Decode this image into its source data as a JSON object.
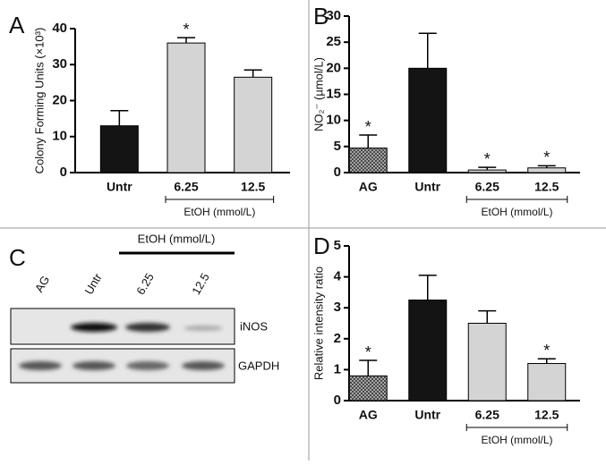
{
  "chart_data": [
    {
      "type": "bar",
      "label": "A",
      "ylabel": "Colony Forming Units (×10³)",
      "categories": [
        "Untr",
        "6.25",
        "12.5"
      ],
      "values": [
        13,
        36,
        26.5
      ],
      "errors": [
        4.2,
        1.5,
        2
      ],
      "colors": [
        "#141414",
        "#d4d4d4",
        "#d4d4d4"
      ],
      "hatch": [
        false,
        false,
        false
      ],
      "annotations": [
        null,
        "*",
        null
      ],
      "group": {
        "label": "EtOH (mmol/L)",
        "from": 1,
        "to": 2
      },
      "ylim": [
        0,
        40
      ],
      "yticks": [
        0,
        10,
        20,
        30,
        40
      ]
    },
    {
      "type": "bar",
      "label": "B",
      "ylabel": "NO₂⁻ (µmol/L)",
      "categories": [
        "AG",
        "Untr",
        "6.25",
        "12.5"
      ],
      "values": [
        4.7,
        20,
        0.5,
        0.9
      ],
      "errors": [
        2.5,
        6.7,
        0.5,
        0.4
      ],
      "colors": [
        "#888888",
        "#141414",
        "#d4d4d4",
        "#d4d4d4"
      ],
      "hatch": [
        true,
        false,
        false,
        false
      ],
      "annotations": [
        "*",
        null,
        "*",
        "*"
      ],
      "group": {
        "label": "EtOH (mmol/L)",
        "from": 2,
        "to": 3
      },
      "ylim": [
        0,
        30
      ],
      "yticks": [
        0,
        5,
        10,
        15,
        20,
        25,
        30
      ]
    },
    {
      "type": "bar",
      "label": "D",
      "ylabel": "Relative intensity ratio",
      "categories": [
        "AG",
        "Untr",
        "6.25",
        "12.5"
      ],
      "values": [
        0.8,
        3.25,
        2.5,
        1.2
      ],
      "errors": [
        0.5,
        0.8,
        0.4,
        0.15
      ],
      "colors": [
        "#888888",
        "#141414",
        "#d4d4d4",
        "#d4d4d4"
      ],
      "hatch": [
        true,
        false,
        false,
        false
      ],
      "annotations": [
        "*",
        null,
        null,
        "*"
      ],
      "group": {
        "label": "EtOH (mmol/L)",
        "from": 2,
        "to": 3
      },
      "ylim": [
        0,
        5
      ],
      "yticks": [
        0,
        1,
        2,
        3,
        4,
        5
      ]
    }
  ],
  "blot": {
    "label": "C",
    "group": "EtOH (mmol/L)",
    "lanes": [
      "AG",
      "Untr",
      "6.25",
      "12.5"
    ],
    "rows": [
      "iNOS",
      "GAPDH"
    ]
  }
}
